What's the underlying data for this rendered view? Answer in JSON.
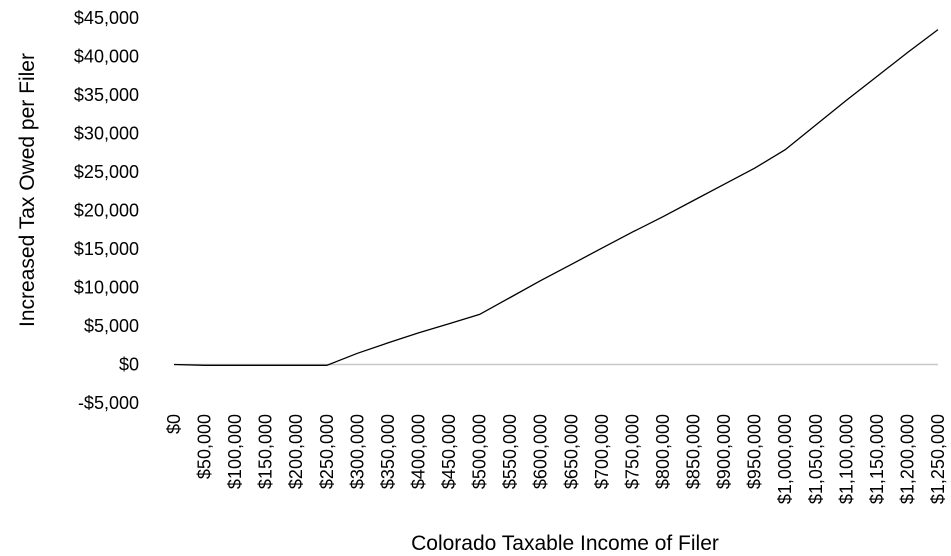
{
  "chart_data": {
    "type": "line",
    "title": "",
    "xlabel": "Colorado Taxable Income of Filer",
    "ylabel": "Increased Tax Owed per Filer",
    "ylim": [
      -5000,
      45000
    ],
    "yticks": [
      {
        "value": -5000,
        "label": "-$5,000"
      },
      {
        "value": 0,
        "label": "$0"
      },
      {
        "value": 5000,
        "label": "$5,000"
      },
      {
        "value": 10000,
        "label": "$10,000"
      },
      {
        "value": 15000,
        "label": "$15,000"
      },
      {
        "value": 20000,
        "label": "$20,000"
      },
      {
        "value": 25000,
        "label": "$25,000"
      },
      {
        "value": 30000,
        "label": "$30,000"
      },
      {
        "value": 35000,
        "label": "$35,000"
      },
      {
        "value": 40000,
        "label": "$40,000"
      },
      {
        "value": 45000,
        "label": "$45,000"
      }
    ],
    "categories": [
      "$0",
      "$50,000",
      "$100,000",
      "$150,000",
      "$200,000",
      "$250,000",
      "$300,000",
      "$350,000",
      "$400,000",
      "$450,000",
      "$500,000",
      "$550,000",
      "$600,000",
      "$650,000",
      "$700,000",
      "$750,000",
      "$800,000",
      "$850,000",
      "$900,000",
      "$950,000",
      "$1,000,000",
      "$1,050,000",
      "$1,100,000",
      "$1,150,000",
      "$1,200,000",
      "$1,250,000"
    ],
    "series": [
      {
        "values": [
          0,
          -100,
          -100,
          -100,
          -100,
          -100,
          1450,
          2800,
          4100,
          5300,
          6500,
          8700,
          10900,
          13000,
          15100,
          17200,
          19200,
          21300,
          23400,
          25500,
          27900,
          31100,
          34300,
          37400,
          40500,
          43500
        ]
      }
    ],
    "zero_line": true,
    "grid": false,
    "colors": {
      "line": "#000000",
      "zero_line": "#c8c8c8",
      "text": "#000000"
    }
  }
}
